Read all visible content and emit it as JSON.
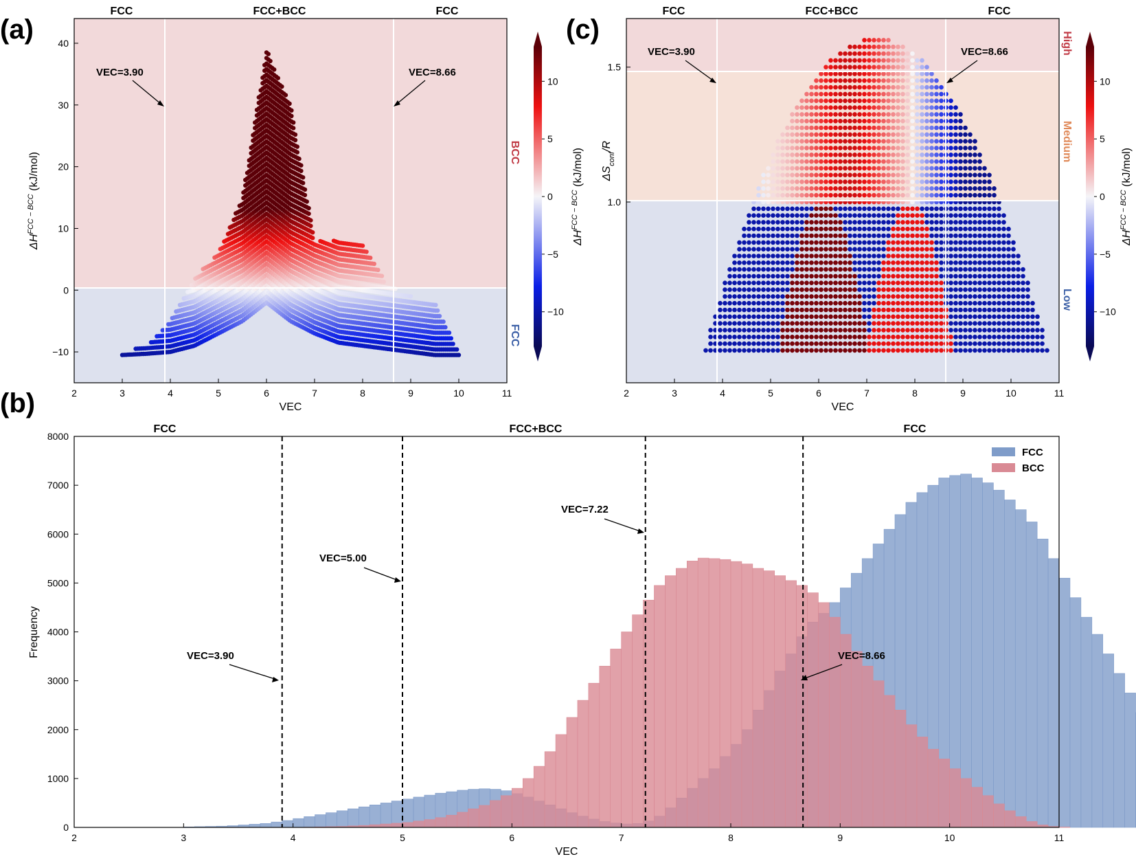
{
  "panels": {
    "a": {
      "label": "(a)",
      "phase_labels": [
        "FCC",
        "FCC+BCC",
        "FCC"
      ],
      "side_labels": {
        "top": "BCC",
        "bottom": "FCC"
      },
      "annotations": [
        "VEC=3.90",
        "VEC=8.66"
      ]
    },
    "b": {
      "label": "(b)",
      "phase_labels": [
        "FCC",
        "FCC+BCC",
        "FCC"
      ],
      "annotations": [
        "VEC=3.90",
        "VEC=5.00",
        "VEC=7.22",
        "VEC=8.66"
      ]
    },
    "c": {
      "label": "(c)",
      "phase_labels": [
        "FCC",
        "FCC+BCC",
        "FCC"
      ],
      "side_labels": {
        "high": "High",
        "medium": "Medium",
        "low": "Low"
      },
      "annotations": [
        "VEC=3.90",
        "VEC=8.66"
      ]
    }
  },
  "colors": {
    "bcc_region": "#f2d9da",
    "fcc_region": "#dde1ee",
    "medium_region": "#f6e1d8",
    "fcc_bar": "#7f9cc9",
    "bcc_bar": "#d98a94",
    "bcc_text": "#c03a45",
    "fcc_text": "#3b5fa6",
    "medium_text": "#e08a5a"
  },
  "chart_data": [
    {
      "id": "a",
      "type": "scatter",
      "title": "",
      "xlabel": "VEC",
      "ylabel": "ΔH_f^{FCC−BCC} (kJ/mol)",
      "ylabel_parts": {
        "delta": "ΔH",
        "sub": "f",
        "sup": "FCC − BCC",
        "unit": " (kJ/mol)"
      },
      "xlim": [
        2,
        11
      ],
      "ylim": [
        -15,
        44
      ],
      "xticks": [
        2,
        3,
        4,
        5,
        6,
        7,
        8,
        9,
        10,
        11
      ],
      "yticks": [
        -10,
        0,
        10,
        20,
        30,
        40
      ],
      "vlines": [
        3.9,
        8.66
      ],
      "hline": 0,
      "envelope": {
        "x": [
          3.0,
          3.5,
          4.0,
          4.5,
          5.0,
          5.5,
          6.0,
          6.5,
          7.0,
          7.5,
          8.0,
          8.5,
          9.0,
          9.5,
          10.0
        ],
        "upper": [
          -10,
          -9,
          -5,
          2,
          6,
          15,
          39,
          30,
          8,
          8,
          7.5,
          1,
          -1,
          -2,
          -10
        ],
        "lower": [
          -10.5,
          -10.3,
          -10,
          -9,
          -7,
          -5,
          -2,
          -5,
          -7,
          -8.5,
          -9,
          -9.5,
          -10,
          -10.5,
          -10.5
        ]
      },
      "colorbar": {
        "label": "ΔH_f^{FCC−BCC} (kJ/mol)",
        "range": [
          -13,
          13
        ],
        "ticks": [
          -10,
          -5,
          0,
          5,
          10
        ]
      }
    },
    {
      "id": "c",
      "type": "scatter",
      "title": "",
      "xlabel": "VEC",
      "ylabel": "ΔS_conf/R",
      "ylabel_parts": {
        "main": "ΔS",
        "sub": "conf",
        "tail": "/R"
      },
      "xlim": [
        2,
        11
      ],
      "ylim": [
        0.33,
        1.68
      ],
      "xticks": [
        2,
        3,
        4,
        5,
        6,
        7,
        8,
        9,
        10,
        11
      ],
      "yticks": [
        1.0,
        1.5
      ],
      "vlines": [
        3.9,
        8.66
      ],
      "hlines": [
        1.0,
        1.5
      ],
      "arch": {
        "center": 7.2,
        "half_width": 3.75,
        "peak": 1.61,
        "base": 0.33
      },
      "inner_arches": [
        {
          "center": 6.1,
          "half_width": 0.95
        },
        {
          "center": 7.9,
          "half_width": 0.9
        }
      ],
      "colorbar": {
        "label": "ΔH_f^{FCC−BCC} (kJ/mol)",
        "range": [
          -13,
          13
        ],
        "ticks": [
          -10,
          -5,
          0,
          5,
          10
        ]
      }
    },
    {
      "id": "b",
      "type": "bar",
      "title": "",
      "xlabel": "VEC",
      "ylabel": "Frequency",
      "xlim": [
        2,
        11
      ],
      "ylim": [
        0,
        8000
      ],
      "xticks": [
        2,
        3,
        4,
        5,
        6,
        7,
        8,
        9,
        10,
        11
      ],
      "yticks": [
        0,
        1000,
        2000,
        3000,
        4000,
        5000,
        6000,
        7000,
        8000
      ],
      "vlines": [
        3.9,
        5.0,
        7.22,
        8.66
      ],
      "bin_start": 3.0,
      "bin_width": 0.1,
      "legend": "top-right",
      "series": [
        {
          "name": "FCC",
          "values": [
            10,
            15,
            20,
            25,
            35,
            50,
            65,
            80,
            110,
            140,
            180,
            220,
            260,
            300,
            340,
            380,
            420,
            460,
            500,
            540,
            580,
            620,
            660,
            700,
            730,
            760,
            780,
            790,
            780,
            750,
            690,
            620,
            540,
            460,
            380,
            300,
            230,
            170,
            120,
            90,
            70,
            80,
            130,
            230,
            400,
            600,
            800,
            1000,
            1200,
            1450,
            1700,
            2000,
            2400,
            2800,
            3200,
            3550,
            3900,
            4200,
            4380,
            4600,
            4900,
            5200,
            5500,
            5800,
            6100,
            6400,
            6650,
            6850,
            7000,
            7150,
            7200,
            7230,
            7150,
            7050,
            6900,
            6700,
            6500,
            6250,
            5900,
            5500,
            5100,
            4700,
            4300,
            3950,
            3550,
            3150,
            2750,
            2350,
            1950,
            1550,
            1200,
            950,
            720,
            540,
            400,
            290,
            200,
            140,
            90,
            55,
            30,
            18,
            10
          ]
        },
        {
          "name": "BCC",
          "values": [
            0,
            0,
            0,
            0,
            0,
            0,
            0,
            0,
            0,
            0,
            0,
            5,
            10,
            15,
            20,
            30,
            40,
            55,
            70,
            85,
            100,
            130,
            160,
            200,
            250,
            310,
            380,
            450,
            550,
            650,
            800,
            1000,
            1250,
            1550,
            1900,
            2250,
            2600,
            2950,
            3300,
            3650,
            4000,
            4350,
            4650,
            4950,
            5150,
            5300,
            5450,
            5510,
            5500,
            5480,
            5440,
            5390,
            5300,
            5250,
            5150,
            5050,
            4950,
            4800,
            4600,
            4300,
            3950,
            3600,
            3300,
            3000,
            2700,
            2400,
            2100,
            1850,
            1600,
            1400,
            1200,
            1000,
            820,
            650,
            480,
            340,
            220,
            120,
            50,
            20,
            8,
            0,
            0,
            0,
            0,
            0,
            0,
            0,
            0,
            0,
            0,
            0,
            0,
            0,
            0,
            0,
            0,
            0,
            0,
            0,
            0,
            0,
            0
          ]
        }
      ]
    }
  ]
}
